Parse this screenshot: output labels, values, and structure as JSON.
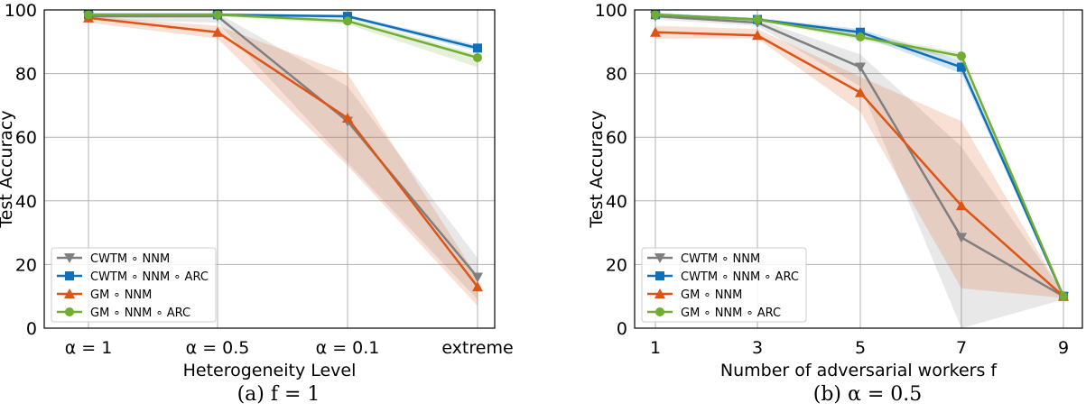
{
  "chart_data": [
    {
      "type": "line",
      "caption": "(a) f = 1",
      "xlabel": "Heterogeneity Level",
      "ylabel": "Test Accuracy",
      "categories": [
        "α = 1",
        "α = 0.5",
        "α = 0.1",
        "extreme"
      ],
      "ylim": [
        0,
        100
      ],
      "yticks": [
        0,
        20,
        40,
        60,
        80,
        100
      ],
      "grid": true,
      "legend": "bottom-left",
      "series": [
        {
          "name": "CWTM ∘ NNM",
          "color": "#7f7f7f",
          "marker": "triangle-down",
          "values": [
            98,
            98,
            65,
            16
          ],
          "lower": [
            97,
            96,
            52,
            9
          ],
          "upper": [
            99,
            99,
            76,
            22
          ]
        },
        {
          "name": "CWTM ∘ NNM ∘ ARC",
          "color": "#0f6fb8",
          "marker": "square",
          "values": [
            98.5,
            98.5,
            98,
            88
          ],
          "lower": [
            98,
            98,
            97.5,
            87
          ],
          "upper": [
            99,
            99,
            98.5,
            89
          ]
        },
        {
          "name": "GM ∘ NNM",
          "color": "#dd5415",
          "marker": "triangle-up",
          "values": [
            97.5,
            93,
            66,
            13
          ],
          "lower": [
            96,
            91,
            51,
            7
          ],
          "upper": [
            98,
            95,
            80,
            16
          ]
        },
        {
          "name": "GM ∘ NNM ∘ ARC",
          "color": "#70ad31",
          "marker": "circle",
          "values": [
            98.5,
            98.5,
            96.5,
            85
          ],
          "lower": [
            98,
            98,
            95.5,
            82
          ],
          "upper": [
            99,
            99,
            97.5,
            86
          ]
        }
      ]
    },
    {
      "type": "line",
      "caption": "(b) α = 0.5",
      "xlabel": "Number of adversarial workers f",
      "ylabel": "Test Accuracy",
      "categories": [
        "1",
        "3",
        "5",
        "7",
        "9"
      ],
      "ylim": [
        0,
        100
      ],
      "yticks": [
        0,
        20,
        40,
        60,
        80,
        100
      ],
      "grid": true,
      "legend": "bottom-left",
      "series": [
        {
          "name": "CWTM ∘ NNM",
          "color": "#7f7f7f",
          "marker": "triangle-down",
          "values": [
            98,
            96,
            82,
            28.5,
            10
          ],
          "lower": [
            97,
            95,
            76,
            0,
            9
          ],
          "upper": [
            99,
            97,
            86,
            57,
            11
          ]
        },
        {
          "name": "CWTM ∘ NNM ∘ ARC",
          "color": "#0f6fb8",
          "marker": "square",
          "values": [
            98.5,
            97,
            93,
            82,
            10
          ],
          "lower": [
            98,
            96.5,
            92,
            80,
            9.5
          ],
          "upper": [
            99,
            97.5,
            94,
            84,
            10.5
          ]
        },
        {
          "name": "GM ∘ NNM",
          "color": "#dd5415",
          "marker": "triangle-up",
          "values": [
            93,
            92,
            74,
            38.5,
            10
          ],
          "lower": [
            91,
            91,
            68,
            12.5,
            9.5
          ],
          "upper": [
            95,
            94,
            79,
            65,
            10.5
          ]
        },
        {
          "name": "GM ∘ NNM ∘ ARC",
          "color": "#70ad31",
          "marker": "circle",
          "values": [
            98.5,
            97,
            91.5,
            85.5,
            10
          ],
          "lower": [
            98,
            96.5,
            90.5,
            84.5,
            9.5
          ],
          "upper": [
            99,
            97.5,
            92.5,
            86.5,
            10.5
          ]
        }
      ]
    }
  ]
}
